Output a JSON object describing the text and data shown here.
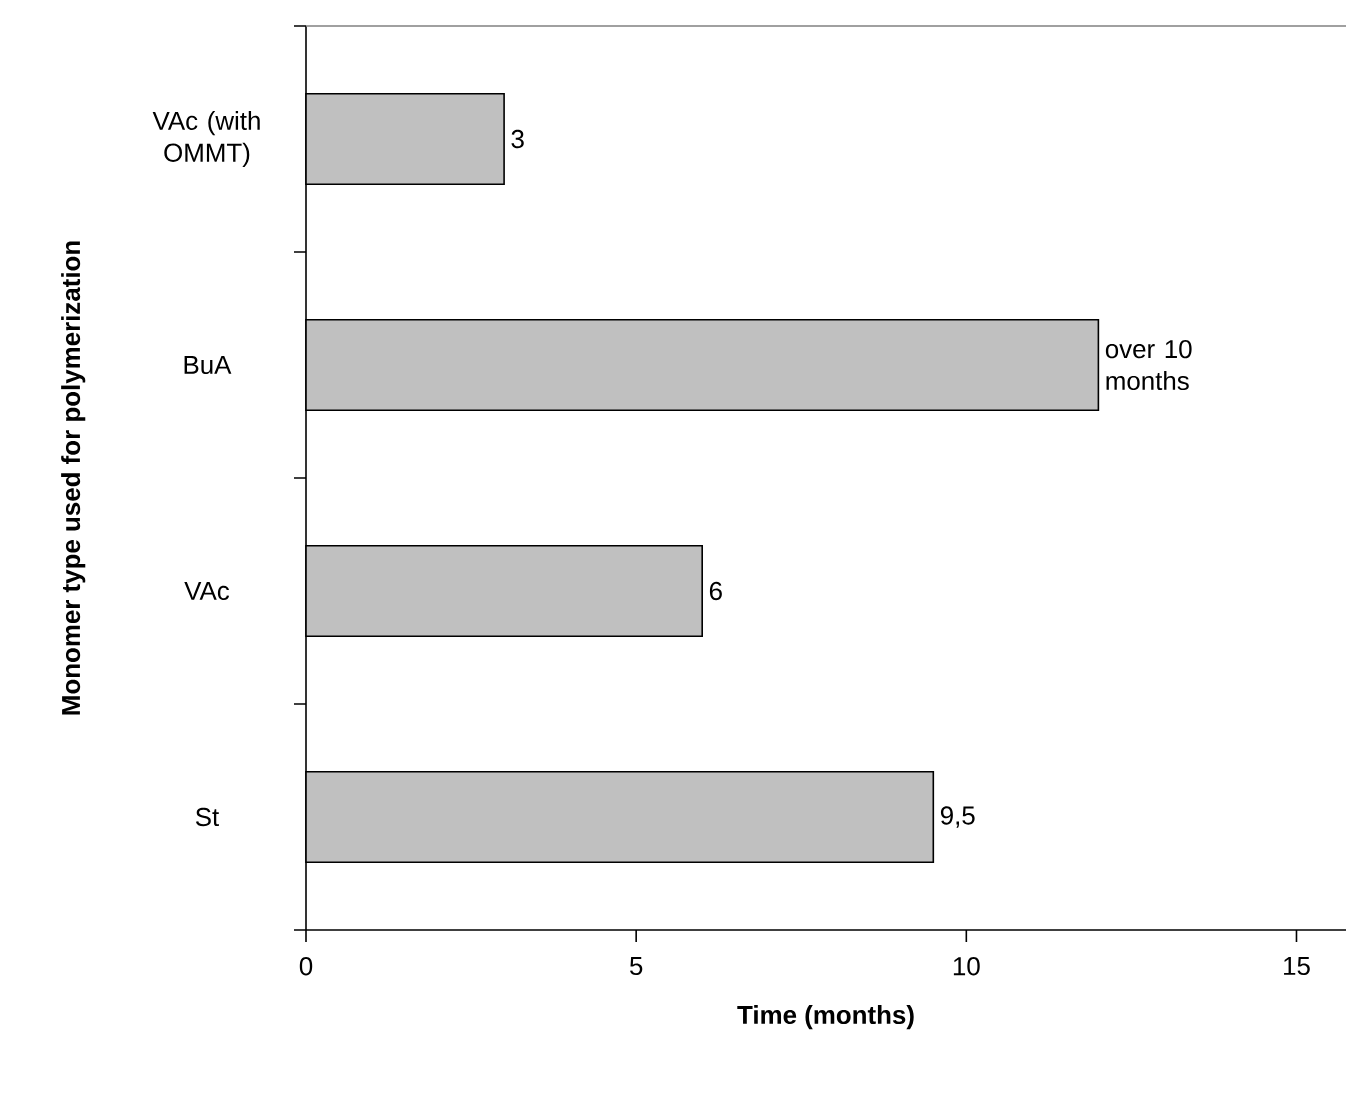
{
  "chart_data": {
    "type": "bar",
    "orientation": "horizontal",
    "xlabel": "Time (months)",
    "ylabel": "Monomer type used for polymerization",
    "categories": [
      "VAc (with OMMT)",
      "BuA",
      "VAc",
      "St"
    ],
    "values": [
      3,
      12,
      6,
      9.5
    ],
    "value_labels": [
      "3",
      "over 10 months",
      "6",
      "9,5"
    ],
    "color": "#c0c0c0",
    "xlim": [
      0,
      15.75
    ],
    "xticks": [
      0,
      5,
      10,
      15
    ],
    "grid": false
  }
}
